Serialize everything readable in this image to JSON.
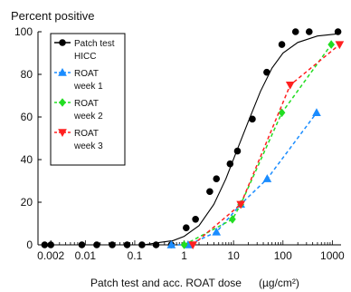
{
  "chart_data": {
    "type": "line",
    "ylabel": "Percent positive",
    "xlabel": "Patch test and acc. ROAT dose",
    "xlabel_overlap": "(µg/cm²)",
    "x_scale": "log",
    "xlim": [
      0.002,
      1500
    ],
    "ylim": [
      0,
      100
    ],
    "x_ticks": [
      {
        "value": 0.002,
        "label": "0.002"
      },
      {
        "value": 0.01,
        "label": "0.01"
      },
      {
        "value": 0.1,
        "label": "0.1"
      },
      {
        "value": 1,
        "label": "1"
      },
      {
        "value": 10,
        "label": "10"
      },
      {
        "value": 100,
        "label": "100"
      },
      {
        "value": 1000,
        "label": "1000"
      }
    ],
    "y_ticks": [
      0,
      20,
      40,
      60,
      80,
      100
    ],
    "legend_position": "upper-left",
    "series": [
      {
        "name": "Patch test HICC",
        "legend_lines": [
          "Patch test",
          "HICC"
        ],
        "color": "#000000",
        "marker": "circle",
        "line_style": "solid-fit",
        "points": [
          {
            "x": 0.0015,
            "y": 0
          },
          {
            "x": 0.002,
            "y": 0
          },
          {
            "x": 0.0085,
            "y": 0
          },
          {
            "x": 0.017,
            "y": 0
          },
          {
            "x": 0.035,
            "y": 0
          },
          {
            "x": 0.07,
            "y": 0
          },
          {
            "x": 0.14,
            "y": 0
          },
          {
            "x": 0.27,
            "y": 0
          },
          {
            "x": 0.55,
            "y": 0
          },
          {
            "x": 1.1,
            "y": 8
          },
          {
            "x": 1.7,
            "y": 12
          },
          {
            "x": 3.3,
            "y": 25
          },
          {
            "x": 4.5,
            "y": 31
          },
          {
            "x": 8.5,
            "y": 38
          },
          {
            "x": 12,
            "y": 44
          },
          {
            "x": 24,
            "y": 59
          },
          {
            "x": 47,
            "y": 81
          },
          {
            "x": 95,
            "y": 94
          },
          {
            "x": 180,
            "y": 100
          },
          {
            "x": 340,
            "y": 100
          },
          {
            "x": 1300,
            "y": 100
          }
        ],
        "fit": [
          {
            "x": 0.15,
            "y": 0
          },
          {
            "x": 0.3,
            "y": 1
          },
          {
            "x": 0.6,
            "y": 2
          },
          {
            "x": 1.0,
            "y": 4
          },
          {
            "x": 2.0,
            "y": 9
          },
          {
            "x": 4.0,
            "y": 19
          },
          {
            "x": 7.0,
            "y": 31
          },
          {
            "x": 12,
            "y": 45
          },
          {
            "x": 20,
            "y": 58
          },
          {
            "x": 35,
            "y": 72
          },
          {
            "x": 60,
            "y": 83
          },
          {
            "x": 100,
            "y": 90
          },
          {
            "x": 200,
            "y": 95
          },
          {
            "x": 500,
            "y": 98
          },
          {
            "x": 1300,
            "y": 99
          }
        ]
      },
      {
        "name": "ROAT week 1",
        "legend_lines": [
          "ROAT",
          "week 1"
        ],
        "color": "#1a8cff",
        "marker": "triangle-up",
        "line_style": "dashed",
        "points": [
          {
            "x": 0.55,
            "y": 0
          },
          {
            "x": 1.2,
            "y": 0
          },
          {
            "x": 4.5,
            "y": 6
          },
          {
            "x": 14,
            "y": 19
          },
          {
            "x": 48,
            "y": 31
          },
          {
            "x": 480,
            "y": 62
          }
        ]
      },
      {
        "name": "ROAT week 2",
        "legend_lines": [
          "ROAT",
          "week 2"
        ],
        "color": "#22dd22",
        "marker": "diamond",
        "line_style": "dashed",
        "points": [
          {
            "x": 1.0,
            "y": 0
          },
          {
            "x": 9.5,
            "y": 12
          },
          {
            "x": 14,
            "y": 19
          },
          {
            "x": 95,
            "y": 62
          },
          {
            "x": 950,
            "y": 94
          }
        ]
      },
      {
        "name": "ROAT week 3",
        "legend_lines": [
          "ROAT",
          "week 3"
        ],
        "color": "#ff2020",
        "marker": "triangle-down",
        "line_style": "dashed",
        "points": [
          {
            "x": 1.5,
            "y": 0
          },
          {
            "x": 14,
            "y": 19
          },
          {
            "x": 140,
            "y": 75
          },
          {
            "x": 1400,
            "y": 94
          }
        ]
      }
    ]
  }
}
